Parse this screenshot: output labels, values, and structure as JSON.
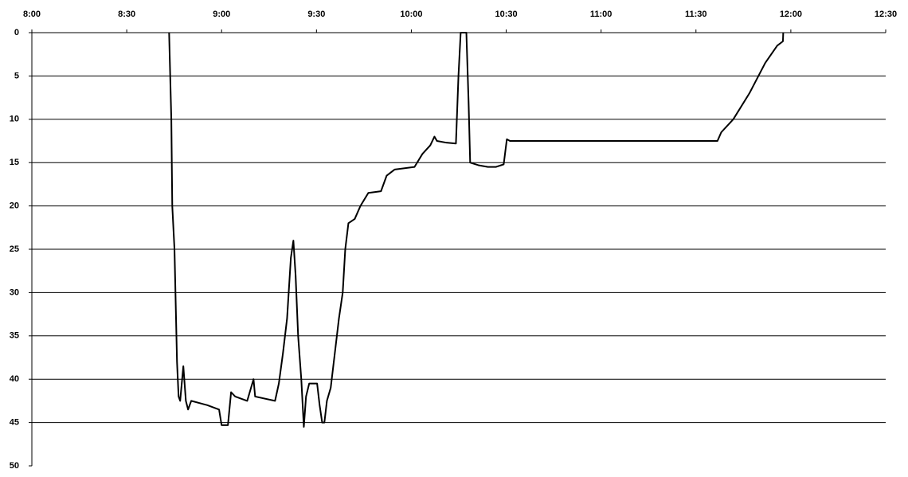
{
  "chart_data": {
    "type": "line",
    "x": [
      523.4,
      524.1,
      524.4,
      525.1,
      525.9,
      526.4,
      526.9,
      527.9,
      528.7,
      529.4,
      530.4,
      535.5,
      539.2,
      540.0,
      542.0,
      543.0,
      544.3,
      548.1,
      550.1,
      550.6,
      556.9,
      558.1,
      559.4,
      560.7,
      561.9,
      562.7,
      563.4,
      564.2,
      565.2,
      566.0,
      566.7,
      567.7,
      570.2,
      571.0,
      571.8,
      572.5,
      573.3,
      574.5,
      575.8,
      577.1,
      578.3,
      579.1,
      580.1,
      582.1,
      583.9,
      586.4,
      590.4,
      592.2,
      594.7,
      601.0,
      603.5,
      606.0,
      607.3,
      608.1,
      611.1,
      614.1,
      614.9,
      615.6,
      617.4,
      618.1,
      618.6,
      621.2,
      624.2,
      626.7,
      629.2,
      630.2,
      631.2,
      646.4,
      671.6,
      696.8,
      698.0,
      701.8,
      706.9,
      711.9,
      715.7,
      717.5,
      717.6
    ],
    "series": [
      {
        "color": "#000000",
        "values": [
          0,
          10,
          20,
          25,
          38,
          42,
          42.5,
          38.5,
          42.5,
          43.5,
          42.5,
          43,
          43.5,
          45.3,
          45.3,
          41.5,
          42,
          42.5,
          40,
          42,
          42.5,
          40.5,
          37,
          33,
          26,
          24,
          28,
          35,
          40,
          45.5,
          42,
          40.5,
          40.5,
          43,
          45,
          45,
          42.5,
          41,
          37,
          33,
          30,
          25,
          22,
          21.5,
          20,
          18.5,
          18.3,
          16.5,
          15.8,
          15.5,
          14,
          13,
          12,
          12.5,
          12.7,
          12.8,
          5,
          0,
          0,
          8,
          15,
          15.3,
          15.5,
          15.5,
          15.2,
          12.3,
          12.5,
          12.5,
          12.5,
          12.5,
          11.5,
          10,
          7,
          3.5,
          1.5,
          1,
          0
        ]
      }
    ],
    "xlim": [
      480,
      750
    ],
    "xticks": [
      {
        "value": 480,
        "label": "8:00"
      },
      {
        "value": 510,
        "label": "8:30"
      },
      {
        "value": 540,
        "label": "9:00"
      },
      {
        "value": 570,
        "label": "9:30"
      },
      {
        "value": 600,
        "label": "10:00"
      },
      {
        "value": 630,
        "label": "10:30"
      },
      {
        "value": 660,
        "label": "11:00"
      },
      {
        "value": 690,
        "label": "11:30"
      },
      {
        "value": 720,
        "label": "12:00"
      },
      {
        "value": 750,
        "label": "12:30"
      }
    ],
    "ylim": [
      0,
      50
    ],
    "yticks": [
      0,
      5,
      10,
      15,
      20,
      25,
      30,
      35,
      40,
      45,
      50
    ],
    "y_inverted": true,
    "grid": true
  }
}
